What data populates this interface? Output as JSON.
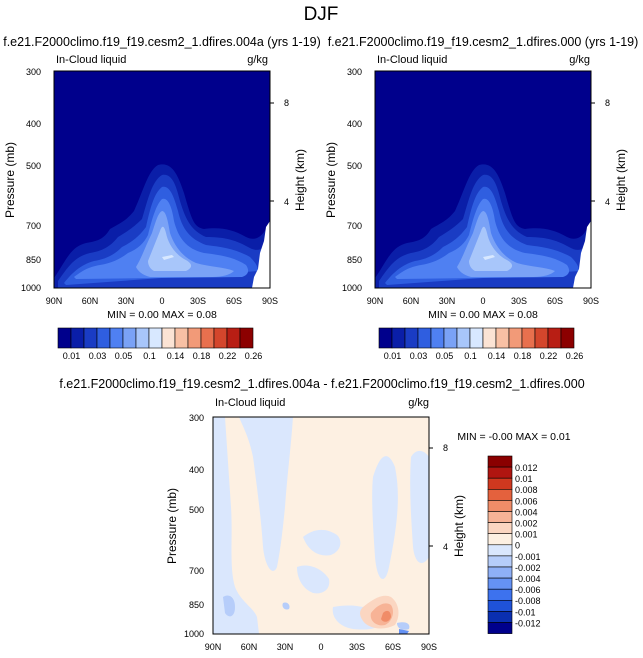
{
  "page_title": "DJF",
  "colors": {
    "top_palette": [
      "#00008c",
      "#0a1ea8",
      "#1a3cc4",
      "#2f5ee0",
      "#4f80f2",
      "#7aa2f6",
      "#a8c6fa",
      "#d8e8ff",
      "#fbe3d4",
      "#f8c0a4",
      "#f29a78",
      "#e8704e",
      "#d4462c",
      "#b81e14",
      "#8c0000"
    ],
    "diff_palette": [
      "#00008c",
      "#0a2fb0",
      "#1f52d8",
      "#3d72ee",
      "#6592f4",
      "#8fb0f7",
      "#b6cdfa",
      "#dae7fd",
      "#fdf0e2",
      "#fbd6c1",
      "#f7b396",
      "#f08c68",
      "#e4613d",
      "#d0381f",
      "#b01510",
      "#8a0000"
    ]
  },
  "chart_data": [
    {
      "type": "heatmap",
      "title": "f.e21.F2000climo.f19_f19.cesm2_1.dfires.004a (yrs 1-19)",
      "left_label": "In-Cloud liquid",
      "right_label": "g/kg",
      "ylabel": "Pressure (mb)",
      "y2label": "Height (km)",
      "x_ticks": [
        "90N",
        "60N",
        "30N",
        "0",
        "30S",
        "60S",
        "90S"
      ],
      "y_ticks": [
        "300",
        "400",
        "500",
        "700",
        "850",
        "1000"
      ],
      "y2_ticks": [
        "8",
        "4"
      ],
      "minmax_text": "MIN =  0.00   MAX =  0.08",
      "colorbar_labels": [
        "0.01",
        "0.03",
        "0.05",
        "0.1",
        "0.14",
        "0.18",
        "0.22",
        "0.26"
      ],
      "colorbar_levels": [
        "0.01",
        "0.02",
        "0.03",
        "0.04",
        "0.05",
        "0.07",
        "0.1",
        "0.12",
        "0.14",
        "0.16",
        "0.18",
        "0.2",
        "0.22",
        "0.24",
        "0.26"
      ]
    },
    {
      "type": "heatmap",
      "title": "f.e21.F2000climo.f19_f19.cesm2_1.dfires.000 (yrs 1-19)",
      "left_label": "In-Cloud liquid",
      "right_label": "g/kg",
      "ylabel": "Pressure (mb)",
      "y2label": "Height (km)",
      "x_ticks": [
        "90N",
        "60N",
        "30N",
        "0",
        "30S",
        "60S",
        "90S"
      ],
      "y_ticks": [
        "300",
        "400",
        "500",
        "700",
        "850",
        "1000"
      ],
      "y2_ticks": [
        "8",
        "4"
      ],
      "minmax_text": "MIN =  0.00   MAX =  0.08",
      "colorbar_labels": [
        "0.01",
        "0.03",
        "0.05",
        "0.1",
        "0.14",
        "0.18",
        "0.22",
        "0.26"
      ]
    },
    {
      "type": "heatmap",
      "title": "f.e21.F2000climo.f19_f19.cesm2_1.dfires.004a - f.e21.F2000climo.f19_f19.cesm2_1.dfires.000",
      "left_label": "In-Cloud liquid",
      "right_label": "g/kg",
      "ylabel": "Pressure (mb)",
      "y2label": "Height (km)",
      "x_ticks": [
        "90N",
        "60N",
        "30N",
        "0",
        "30S",
        "60S",
        "90S"
      ],
      "y_ticks": [
        "300",
        "400",
        "500",
        "700",
        "850",
        "1000"
      ],
      "y2_ticks": [
        "8",
        "4"
      ],
      "minmax_text": "MIN = -0.00   MAX =  0.01",
      "colorbar_labels": [
        "0.012",
        "0.01",
        "0.008",
        "0.006",
        "0.004",
        "0.002",
        "0.001",
        "0",
        "-0.001",
        "-0.002",
        "-0.004",
        "-0.006",
        "-0.008",
        "-0.01",
        "-0.012"
      ]
    }
  ]
}
